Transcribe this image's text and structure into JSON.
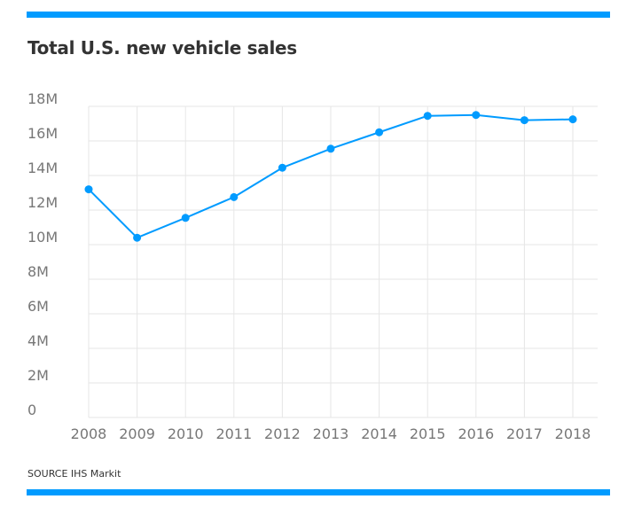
{
  "colors": {
    "accent": "#009bff",
    "title": "#333333",
    "grid": "#e6e6e6",
    "tick_text": "#777777"
  },
  "chart_data": {
    "type": "line",
    "title": "Total U.S. new vehicle sales",
    "xlabel": "",
    "ylabel": "",
    "categories": [
      "2008",
      "2009",
      "2010",
      "2011",
      "2012",
      "2013",
      "2014",
      "2015",
      "2016",
      "2017",
      "2018"
    ],
    "series": [
      {
        "name": "Total U.S. new vehicle sales",
        "values": [
          13.2,
          10.4,
          11.55,
          12.75,
          14.45,
          15.55,
          16.5,
          17.45,
          17.5,
          17.2,
          17.25
        ]
      }
    ],
    "ylim": [
      0,
      18
    ],
    "yticks": [
      0,
      2,
      4,
      6,
      8,
      10,
      12,
      14,
      16,
      18
    ],
    "ytick_labels": [
      "0",
      "2M",
      "4M",
      "6M",
      "8M",
      "10M",
      "12M",
      "14M",
      "16M",
      "18M"
    ],
    "grid": true,
    "legend": "none",
    "source": "SOURCE IHS Markit"
  }
}
